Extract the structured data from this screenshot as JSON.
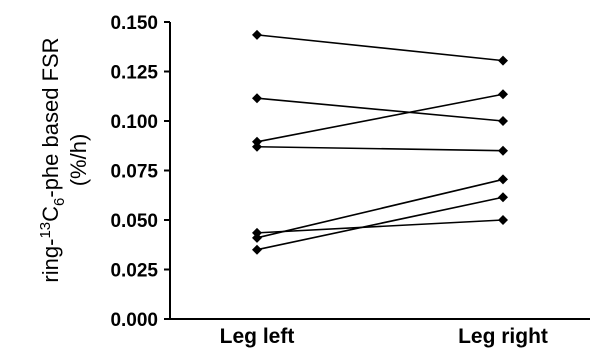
{
  "chart_data": {
    "type": "line",
    "categories": [
      "Leg left",
      "Leg right"
    ],
    "ylabel": {
      "line1_prefix": "ring-",
      "line1_sup": "13",
      "line1_main": "C",
      "line1_sub": "6",
      "line1_suffix": "-phe based FSR",
      "line2": "(%/h)"
    },
    "xlabel": "",
    "ylim": [
      0.0,
      0.15
    ],
    "yticks": [
      "0.000",
      "0.025",
      "0.050",
      "0.075",
      "0.100",
      "0.125",
      "0.150"
    ],
    "grid": false,
    "marker": "diamond",
    "series": [
      {
        "values": [
          0.1435,
          0.1305
        ]
      },
      {
        "values": [
          0.1115,
          0.1
        ]
      },
      {
        "values": [
          0.0895,
          0.1135
        ]
      },
      {
        "values": [
          0.087,
          0.085
        ]
      },
      {
        "values": [
          0.0435,
          0.05
        ]
      },
      {
        "values": [
          0.041,
          0.0705
        ]
      },
      {
        "values": [
          0.035,
          0.0615
        ]
      }
    ]
  }
}
